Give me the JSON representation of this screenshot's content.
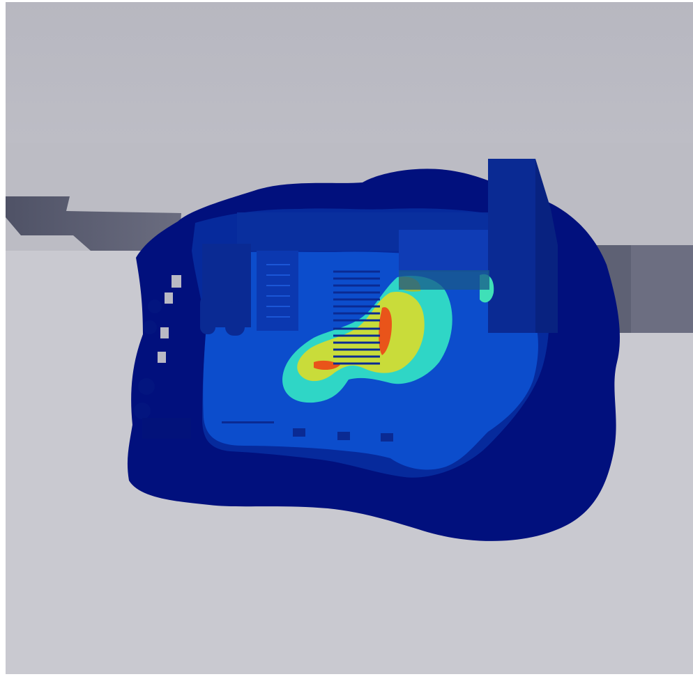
{
  "scene": {
    "kind": "3d-contour-render",
    "colors": {
      "background_light": "#cfcfd6",
      "background_dark": "#b4b4bd",
      "wall": "#b9b9c1",
      "beam": "#5a5d70",
      "contour_level_0": "#01107d",
      "contour_level_1": "#0a2fb0",
      "contour_level_2": "#0d4fd0",
      "contour_level_3": "#2fd6c6",
      "contour_level_4": "#c9dc3a",
      "contour_level_5": "#e9541a",
      "structure": "#0a2a93"
    }
  }
}
